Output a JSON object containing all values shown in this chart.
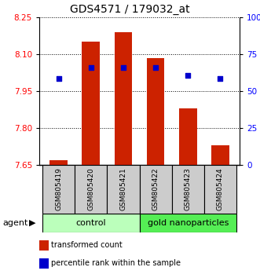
{
  "title": "GDS4571 / 179032_at",
  "samples": [
    "GSM805419",
    "GSM805420",
    "GSM805421",
    "GSM805422",
    "GSM805423",
    "GSM805424"
  ],
  "bar_values": [
    7.67,
    8.15,
    8.19,
    8.085,
    7.88,
    7.73
  ],
  "bar_bottom": 7.65,
  "percentile_values": [
    8.0,
    8.045,
    8.045,
    8.045,
    8.015,
    8.0
  ],
  "ylim": [
    7.65,
    8.25
  ],
  "yticks_left": [
    7.65,
    7.8,
    7.95,
    8.1,
    8.25
  ],
  "yticks_right": [
    0,
    25,
    50,
    75,
    100
  ],
  "bar_color": "#cc2200",
  "dot_color": "#0000cc",
  "agent_label": "agent",
  "legend_bar_label": "transformed count",
  "legend_dot_label": "percentile rank within the sample",
  "sample_box_color": "#cccccc",
  "control_color": "#bbffbb",
  "gold_color": "#55ee55",
  "title_fontsize": 10,
  "tick_fontsize": 7.5,
  "sample_fontsize": 6.5,
  "group_fontsize": 8,
  "legend_fontsize": 7,
  "agent_fontsize": 8
}
